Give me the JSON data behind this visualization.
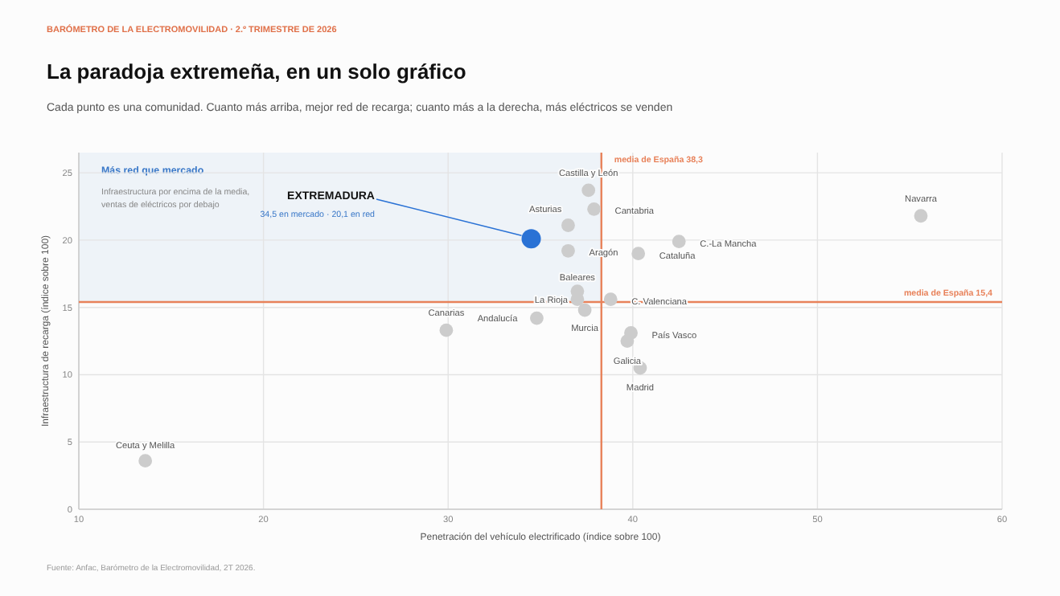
{
  "chart_data": {
    "type": "scatter",
    "title": "La paradoja extremeña, en un solo gráfico",
    "subtitle": "Cada punto es una comunidad. Cuanto más arriba, mejor red de recarga; cuanto más a la derecha, más eléctricos se venden",
    "xlabel": "Penetración del vehículo electrificado  (índice sobre 100)",
    "ylabel": "Infraestructura de recarga  (índice sobre 100)",
    "xlim": [
      10,
      60
    ],
    "xticks": [
      10,
      20,
      30,
      40,
      50,
      60
    ],
    "ylim": [
      0,
      26.5
    ],
    "yticks": [
      0,
      5,
      10,
      15,
      20,
      25
    ],
    "grid": true,
    "marker": "circle",
    "series": [
      {
        "color": "#cccccc",
        "x": [
          37.6,
          37.9,
          36.5,
          36.5,
          40.3,
          42.5,
          55.6,
          37.0,
          37.0,
          38.8,
          34.8,
          37.4,
          29.9,
          39.9,
          39.7,
          40.4,
          13.6
        ],
        "values": [
          23.7,
          22.3,
          21.1,
          19.2,
          19.0,
          19.9,
          21.8,
          16.2,
          15.6,
          15.6,
          14.2,
          14.8,
          13.3,
          13.1,
          12.5,
          10.5,
          3.6
        ],
        "value_labels": [
          "Castilla y León",
          "Cantabria",
          "Asturias",
          "Aragón",
          "Cataluña",
          "C.-La Mancha",
          "Navarra",
          "Baleares",
          "La Rioja",
          "C. Valenciana",
          "Andalucía",
          "Murcia",
          "Canarias",
          "País Vasco",
          "Galicia",
          "Madrid",
          "Ceuta y Melilla"
        ]
      },
      {
        "color": "#2a72d5",
        "x": [
          34.5
        ],
        "values": [
          20.1
        ]
      }
    ],
    "ref_lines": [
      {
        "axis": "x",
        "value": 38.3,
        "label": "media de España  38,3",
        "color": "#e8825a"
      },
      {
        "axis": "y",
        "value": 15.4,
        "label": "media de España  15,4",
        "color": "#e8825a"
      }
    ],
    "bands": [
      {
        "axis": "x",
        "from": 10,
        "to": 38.3,
        "label": "Más red que mercado",
        "color": "#eef3f8"
      }
    ],
    "annotations": [
      "BARÓMETRO DE LA ELECTROMOVILIDAD  ·  2.º TRIMESTRE DE 2026",
      "Infraestructura por encima de la media,",
      "ventas de eléctricos por debajo",
      {
        "text": "EXTREMADURA",
        "x": 34.5,
        "y": 20.1
      },
      "34,5 en mercado  ·  20,1 en red",
      "Fuente: Anfac, Barómetro de la Electromovilidad, 2T 2026."
    ]
  }
}
